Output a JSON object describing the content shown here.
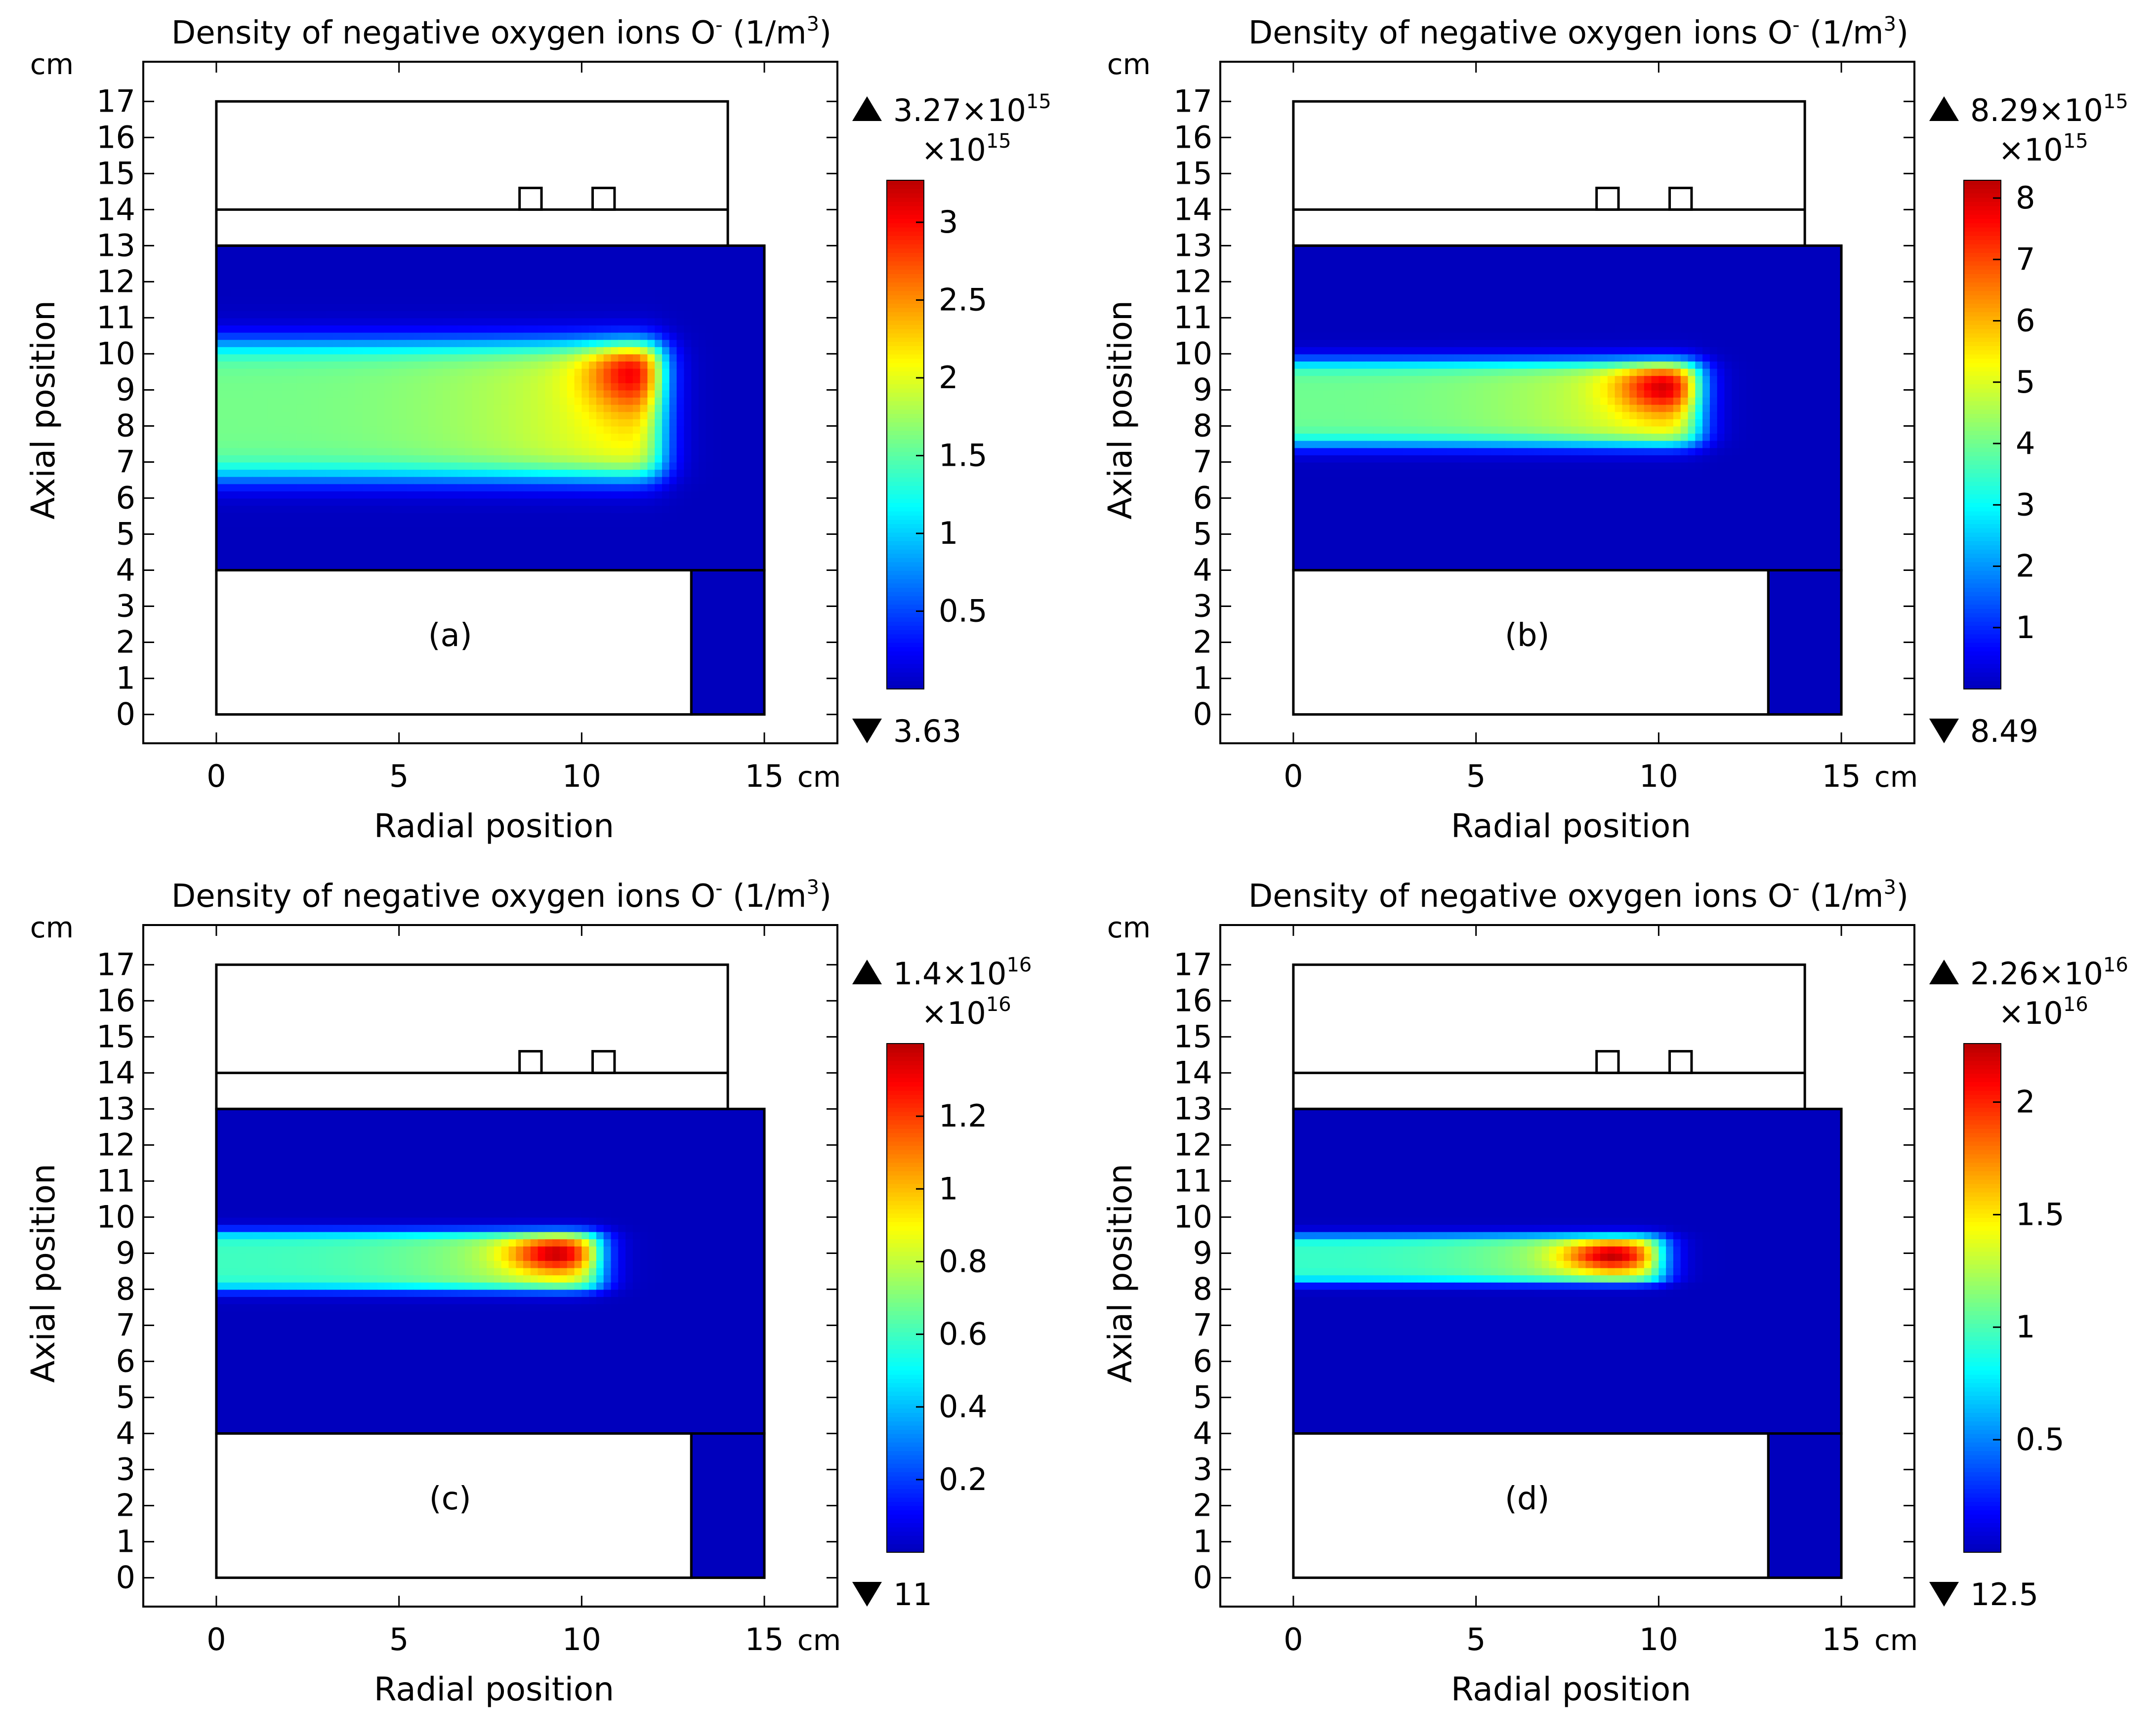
{
  "figure": {
    "title_prefix": "Density of negative oxygen ions O",
    "title_superscript": "-",
    "title_unit": "(1/m",
    "title_unit_exp": "3",
    "title_unit_close": ")"
  },
  "chart_data": [
    {
      "type": "heatmap",
      "panel_label": "(a)",
      "title": "Density of negative oxygen ions O- (1/m3)",
      "xlabel": "Radial position",
      "ylabel": "Axial position",
      "x_unit": "cm",
      "y_unit": "cm",
      "xlim": [
        -2,
        17
      ],
      "ylim": [
        -0.8,
        18.1
      ],
      "x_ticks": [
        "0",
        "5",
        "10",
        "15"
      ],
      "x_tick_values": [
        0,
        5,
        10,
        15
      ],
      "y_ticks": [
        "0",
        "1",
        "2",
        "3",
        "4",
        "5",
        "6",
        "7",
        "8",
        "9",
        "10",
        "11",
        "12",
        "13",
        "14",
        "15",
        "16",
        "17"
      ],
      "colorbar": {
        "max_label": "3.27×10",
        "max_exp": "15",
        "scale_label": "×10",
        "scale_exp": "15",
        "min_label": "3.63",
        "range": [
          0,
          3.27
        ],
        "ticks": [
          0.5,
          1,
          1.5,
          2,
          2.5,
          3
        ],
        "tick_labels": [
          "0.5",
          "1",
          "1.5",
          "2",
          "2.5",
          "3"
        ]
      },
      "peak": {
        "r": 11.5,
        "z": 9.6,
        "value": 3.27
      },
      "band": {
        "z_low": 6.6,
        "z_high": 10.3,
        "r_end": 12.2,
        "base_value": 1.6
      }
    },
    {
      "type": "heatmap",
      "panel_label": "(b)",
      "title": "Density of negative oxygen ions O- (1/m3)",
      "xlabel": "Radial position",
      "ylabel": "Axial position",
      "x_unit": "cm",
      "y_unit": "cm",
      "xlim": [
        -2,
        17
      ],
      "ylim": [
        -0.8,
        18.1
      ],
      "x_ticks": [
        "0",
        "5",
        "10",
        "15"
      ],
      "x_tick_values": [
        0,
        5,
        10,
        15
      ],
      "y_ticks": [
        "0",
        "1",
        "2",
        "3",
        "4",
        "5",
        "6",
        "7",
        "8",
        "9",
        "10",
        "11",
        "12",
        "13",
        "14",
        "15",
        "16",
        "17"
      ],
      "colorbar": {
        "max_label": "8.29×10",
        "max_exp": "15",
        "scale_label": "×10",
        "scale_exp": "15",
        "min_label": "8.49",
        "range": [
          0,
          8.29
        ],
        "ticks": [
          1,
          2,
          3,
          4,
          5,
          6,
          7,
          8
        ],
        "tick_labels": [
          "1",
          "2",
          "3",
          "4",
          "5",
          "6",
          "7",
          "8"
        ]
      },
      "peak": {
        "r": 10.2,
        "z": 9.1,
        "value": 8.29
      },
      "band": {
        "z_low": 7.5,
        "z_high": 9.8,
        "r_end": 11.1,
        "base_value": 4.0
      }
    },
    {
      "type": "heatmap",
      "panel_label": "(c)",
      "title": "Density of negative oxygen ions O- (1/m3)",
      "xlabel": "Radial position",
      "ylabel": "Axial position",
      "x_unit": "cm",
      "y_unit": "cm",
      "xlim": [
        -2,
        17
      ],
      "ylim": [
        -0.8,
        18.1
      ],
      "x_ticks": [
        "0",
        "5",
        "10",
        "15"
      ],
      "x_tick_values": [
        0,
        5,
        10,
        15
      ],
      "y_ticks": [
        "0",
        "1",
        "2",
        "3",
        "4",
        "5",
        "6",
        "7",
        "8",
        "9",
        "10",
        "11",
        "12",
        "13",
        "14",
        "15",
        "16",
        "17"
      ],
      "colorbar": {
        "max_label": "1.4×10",
        "max_exp": "16",
        "scale_label": "×10",
        "scale_exp": "16",
        "min_label": "11",
        "range": [
          0,
          1.4
        ],
        "ticks": [
          0.2,
          0.4,
          0.6,
          0.8,
          1,
          1.2
        ],
        "tick_labels": [
          "0.2",
          "0.4",
          "0.6",
          "0.8",
          "1",
          "1.2"
        ]
      },
      "peak": {
        "r": 9.3,
        "z": 9.0,
        "value": 1.4
      },
      "band": {
        "z_low": 8.0,
        "z_high": 9.6,
        "r_end": 10.5,
        "base_value": 0.6
      }
    },
    {
      "type": "heatmap",
      "panel_label": "(d)",
      "title": "Density of negative oxygen ions O- (1/m3)",
      "xlabel": "Radial position",
      "ylabel": "Axial position",
      "x_unit": "cm",
      "y_unit": "cm",
      "xlim": [
        -2,
        17
      ],
      "ylim": [
        -0.8,
        18.1
      ],
      "x_ticks": [
        "0",
        "5",
        "10",
        "15"
      ],
      "x_tick_values": [
        0,
        5,
        10,
        15
      ],
      "y_ticks": [
        "0",
        "1",
        "2",
        "3",
        "4",
        "5",
        "6",
        "7",
        "8",
        "9",
        "10",
        "11",
        "12",
        "13",
        "14",
        "15",
        "16",
        "17"
      ],
      "colorbar": {
        "max_label": "2.26×10",
        "max_exp": "16",
        "scale_label": "×10",
        "scale_exp": "16",
        "min_label": "12.5",
        "range": [
          0,
          2.26
        ],
        "ticks": [
          0.5,
          1,
          1.5,
          2
        ],
        "tick_labels": [
          "0.5",
          "1",
          "1.5",
          "2"
        ]
      },
      "peak": {
        "r": 8.7,
        "z": 8.95,
        "value": 2.26
      },
      "band": {
        "z_low": 8.2,
        "z_high": 9.5,
        "r_end": 10.1,
        "base_value": 0.95
      }
    }
  ]
}
